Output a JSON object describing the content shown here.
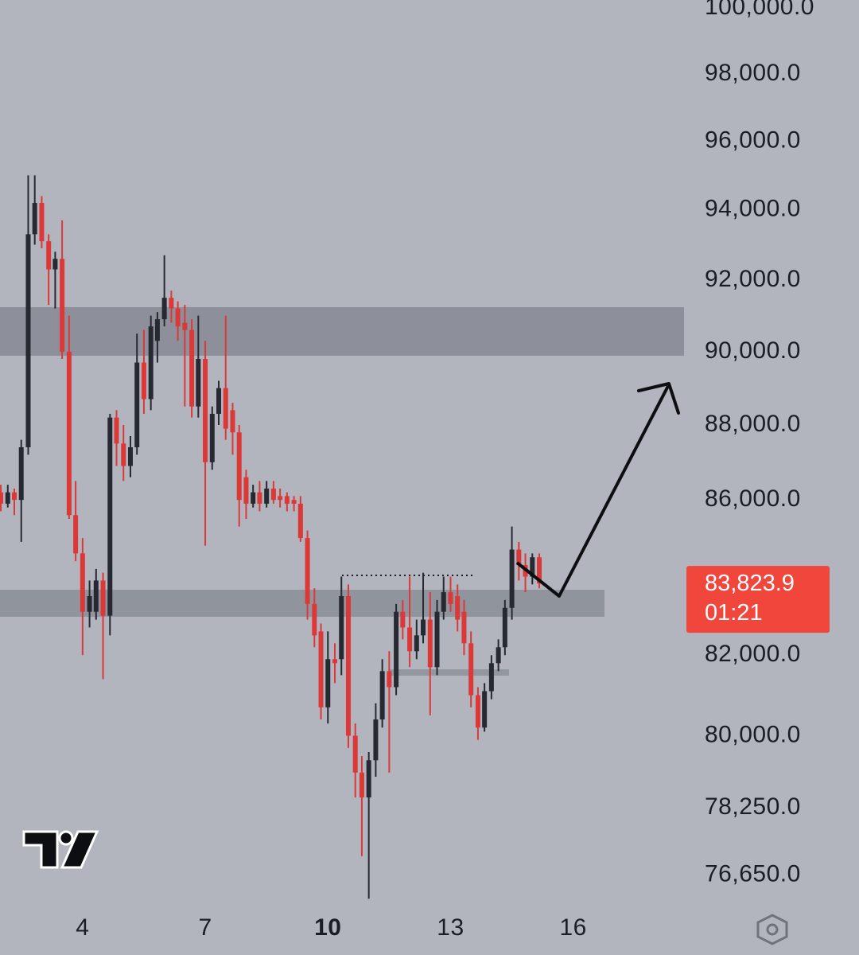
{
  "chart_data": {
    "type": "candlestick",
    "log_scale": true,
    "up_color": "#262932",
    "down_color": "#dc3838",
    "xlim": [
      1.98,
      18.71
    ],
    "ylim": [
      75900,
      100250
    ],
    "xticks": [
      4,
      7,
      10,
      13,
      16
    ],
    "yticks": [
      {
        "value": 100000,
        "label": "100,000.0"
      },
      {
        "value": 98000,
        "label": "98,000.0"
      },
      {
        "value": 96000,
        "label": "96,000.0"
      },
      {
        "value": 94000,
        "label": "94,000.0"
      },
      {
        "value": 92000,
        "label": "92,000.0"
      },
      {
        "value": 90000,
        "label": "90,000.0"
      },
      {
        "value": 88000,
        "label": "88,000.0"
      },
      {
        "value": 86000,
        "label": "86,000.0"
      },
      {
        "value": 82000,
        "label": "82,000.0"
      },
      {
        "value": 80000,
        "label": "80,000.0"
      },
      {
        "value": 78250,
        "label": "78,250.0"
      },
      {
        "value": 76650,
        "label": "76,650.0"
      }
    ],
    "last_price": {
      "value": 83823.9,
      "label": "83,823.9"
    },
    "countdown": "01:21",
    "last_price_color": "#f0463c",
    "x": [
      2,
      2.17,
      2.33,
      2.5,
      2.67,
      2.83,
      3,
      3.17,
      3.33,
      3.5,
      3.67,
      3.83,
      4,
      4.17,
      4.33,
      4.5,
      4.67,
      4.83,
      5,
      5.17,
      5.33,
      5.5,
      5.67,
      5.83,
      6,
      6.17,
      6.33,
      6.5,
      6.67,
      6.83,
      7,
      7.17,
      7.33,
      7.5,
      7.67,
      7.83,
      8,
      8.17,
      8.33,
      8.5,
      8.67,
      8.83,
      9,
      9.17,
      9.33,
      9.5,
      9.67,
      9.83,
      10,
      10.17,
      10.33,
      10.5,
      10.67,
      10.83,
      11,
      11.17,
      11.33,
      11.5,
      11.67,
      11.83,
      12,
      12.17,
      12.33,
      12.5,
      12.67,
      12.83,
      13,
      13.17,
      13.33,
      13.5,
      13.67,
      13.83,
      14,
      14.17,
      14.33,
      14.5,
      14.67,
      14.83,
      15,
      15.17
    ],
    "open": [
      86200,
      85900,
      86200,
      86000,
      87400,
      93300,
      94200,
      93100,
      92300,
      92600,
      90000,
      85600,
      84600,
      83100,
      83100,
      83900,
      83000,
      88200,
      87500,
      86900,
      87400,
      89700,
      88700,
      90300,
      90900,
      91500,
      91200,
      90800,
      90600,
      88500,
      89800,
      87000,
      88300,
      89000,
      88400,
      87800,
      86600,
      85900,
      86200,
      85900,
      86300,
      86100,
      86100,
      86000,
      85900,
      85000,
      83300,
      82600,
      80700,
      81900,
      81900,
      83500,
      80000,
      79100,
      78500,
      79400,
      80400,
      81600,
      81200,
      83100,
      82700,
      82100,
      82500,
      82900,
      81700,
      83100,
      83600,
      83500,
      83100,
      82300,
      81000,
      80200,
      81100,
      81800,
      82200,
      83200,
      84700,
      84300,
      84000,
      84500
    ],
    "high": [
      86400,
      86400,
      86300,
      87600,
      95000,
      95000,
      94400,
      93300,
      92800,
      93700,
      91000,
      86500,
      85000,
      83900,
      84200,
      84100,
      88300,
      88400,
      88000,
      87700,
      90500,
      90600,
      91000,
      91100,
      92700,
      91700,
      91400,
      91300,
      90900,
      91000,
      90300,
      88500,
      89200,
      91000,
      88600,
      88000,
      86800,
      86400,
      86500,
      86500,
      86500,
      86300,
      86200,
      86100,
      86100,
      85200,
      83700,
      82800,
      82600,
      82300,
      84000,
      83800,
      80300,
      79500,
      79600,
      80800,
      81900,
      82100,
      83300,
      83400,
      84000,
      82900,
      84100,
      83600,
      83400,
      84000,
      84000,
      83800,
      83400,
      82600,
      81200,
      81300,
      82000,
      82400,
      83400,
      85300,
      84900,
      84600,
      84600,
      84600
    ],
    "low": [
      85700,
      85800,
      85600,
      84900,
      87200,
      93000,
      92900,
      91300,
      91200,
      89800,
      85500,
      84400,
      82000,
      82700,
      82900,
      81400,
      82500,
      86900,
      86500,
      86600,
      87200,
      88300,
      88400,
      89700,
      90700,
      90800,
      90300,
      88500,
      88200,
      88200,
      84800,
      86800,
      88000,
      87600,
      87200,
      85300,
      85500,
      85800,
      85700,
      85800,
      85900,
      85800,
      85700,
      85700,
      84900,
      82900,
      82200,
      80400,
      80300,
      81300,
      81500,
      79700,
      78500,
      77100,
      76100,
      79000,
      80200,
      79100,
      81000,
      82400,
      81700,
      81900,
      82300,
      80500,
      81500,
      82900,
      83100,
      82600,
      82000,
      80700,
      79900,
      80100,
      80900,
      81600,
      82000,
      82900,
      83900,
      83600,
      83800,
      83700
    ],
    "close": [
      85900,
      86200,
      86000,
      87400,
      93300,
      94200,
      93100,
      92300,
      92600,
      90000,
      85600,
      84600,
      83100,
      83500,
      83900,
      83000,
      88200,
      87500,
      86900,
      87400,
      89700,
      88700,
      90700,
      90900,
      91500,
      91200,
      90700,
      90600,
      88500,
      89800,
      87000,
      88300,
      89000,
      87900,
      87800,
      86000,
      85900,
      86200,
      85900,
      86300,
      86000,
      86000,
      85900,
      85900,
      85000,
      83300,
      82500,
      80700,
      81900,
      81800,
      83500,
      80000,
      79100,
      78500,
      79400,
      80400,
      81600,
      81200,
      83100,
      82700,
      82100,
      82500,
      82900,
      81700,
      83100,
      83600,
      83300,
      82900,
      82300,
      81000,
      80200,
      81100,
      81800,
      82200,
      83200,
      84700,
      84300,
      84000,
      84500,
      83823.9
    ]
  }
}
